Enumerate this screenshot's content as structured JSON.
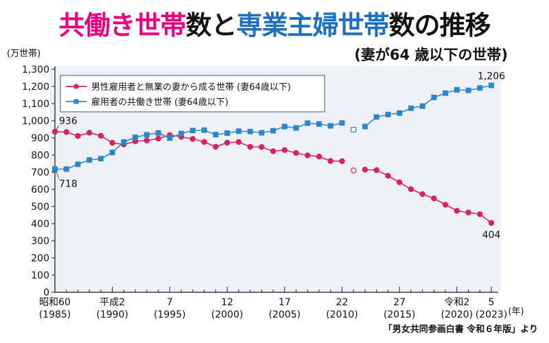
{
  "title": {
    "parts": [
      {
        "text": "共働き世帯",
        "color": "#e6007e"
      },
      {
        "text": "数と",
        "color": "#111111"
      },
      {
        "text": "専業主婦世帯",
        "color": "#1d6fc0"
      },
      {
        "text": "数の推移",
        "color": "#111111"
      }
    ]
  },
  "subtitle": "(妻が64 歳以下の世帯)",
  "source": "「男女共同参画白書 令和６年版」より",
  "colors": {
    "single_income": "#d6235e",
    "dual_income": "#2b88c8",
    "panel_bg": "#eef2f8"
  },
  "chart_data": {
    "type": "line",
    "y_unit": "(万世帯)",
    "x_unit": "(年)",
    "ylim": [
      0,
      1300
    ],
    "yticks": [
      0,
      100,
      200,
      300,
      400,
      500,
      600,
      700,
      800,
      900,
      1000,
      1100,
      1200,
      1300
    ],
    "xlim": [
      1985,
      2023
    ],
    "xticks": [
      {
        "year": 1985,
        "label1": "昭和60",
        "label2": "(1985)"
      },
      {
        "year": 1990,
        "label1": "平成2",
        "label2": "(1990)"
      },
      {
        "year": 1995,
        "label1": "7",
        "label2": "(1995)"
      },
      {
        "year": 2000,
        "label1": "12",
        "label2": "(2000)"
      },
      {
        "year": 2005,
        "label1": "17",
        "label2": "(2005)"
      },
      {
        "year": 2010,
        "label1": "22",
        "label2": "(2010)"
      },
      {
        "year": 2015,
        "label1": "27",
        "label2": "(2015)"
      },
      {
        "year": 2020,
        "label1": "令和2",
        "label2": "(2020)"
      },
      {
        "year": 2023,
        "label1": "5",
        "label2": "(2023)"
      }
    ],
    "gap_years": [
      2011
    ],
    "series": [
      {
        "name": "男性雇用者と無業の妻から成る世帯 (妻64歳以下)",
        "marker": "circle",
        "color_key": "single_income",
        "x": [
          1985,
          1986,
          1987,
          1988,
          1989,
          1990,
          1991,
          1992,
          1993,
          1994,
          1995,
          1996,
          1997,
          1998,
          1999,
          2000,
          2001,
          2002,
          2003,
          2004,
          2005,
          2006,
          2007,
          2008,
          2009,
          2010,
          2011,
          2012,
          2013,
          2014,
          2015,
          2016,
          2017,
          2018,
          2019,
          2020,
          2021,
          2022,
          2023
        ],
        "values": [
          936,
          934,
          911,
          930,
          912,
          871,
          862,
          880,
          885,
          896,
          916,
          906,
          894,
          876,
          848,
          872,
          876,
          848,
          847,
          822,
          829,
          812,
          798,
          791,
          765,
          764,
          710,
          715,
          712,
          679,
          641,
          601,
          572,
          547,
          510,
          475,
          465,
          455,
          404
        ]
      },
      {
        "name": "雇用者の共働き世帯 (妻64歳以下)",
        "marker": "square",
        "color_key": "dual_income",
        "x": [
          1985,
          1986,
          1987,
          1988,
          1989,
          1990,
          1991,
          1992,
          1993,
          1994,
          1995,
          1996,
          1997,
          1998,
          1999,
          2000,
          2001,
          2002,
          2003,
          2004,
          2005,
          2006,
          2007,
          2008,
          2009,
          2010,
          2011,
          2012,
          2013,
          2014,
          2015,
          2016,
          2017,
          2018,
          2019,
          2020,
          2021,
          2022,
          2023
        ],
        "values": [
          718,
          718,
          746,
          771,
          779,
          815,
          876,
          903,
          918,
          929,
          899,
          925,
          943,
          945,
          919,
          928,
          939,
          937,
          930,
          942,
          966,
          958,
          986,
          981,
          970,
          987,
          948,
          966,
          1022,
          1036,
          1045,
          1073,
          1085,
          1136,
          1161,
          1180,
          1177,
          1191,
          1206
        ]
      }
    ],
    "annotations": [
      {
        "series": 0,
        "year": 1985,
        "text": "936"
      },
      {
        "series": 1,
        "year": 1985,
        "text": "718"
      },
      {
        "series": 0,
        "year": 2023,
        "text": "404"
      },
      {
        "series": 1,
        "year": 2023,
        "text": "1,206"
      }
    ],
    "legend_position": "top-left"
  }
}
